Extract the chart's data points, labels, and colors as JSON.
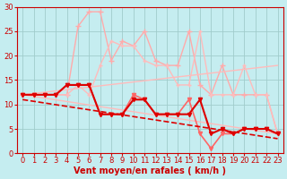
{
  "xlabel": "Vent moyen/en rafales ( km/h )",
  "xlim": [
    -0.5,
    23.5
  ],
  "ylim": [
    0,
    30
  ],
  "yticks": [
    0,
    5,
    10,
    15,
    20,
    25,
    30
  ],
  "xticks": [
    0,
    1,
    2,
    3,
    4,
    5,
    6,
    7,
    8,
    9,
    10,
    11,
    12,
    13,
    14,
    15,
    16,
    17,
    18,
    19,
    20,
    21,
    22,
    23
  ],
  "bg_color": "#c5edf0",
  "grid_color": "#a0cccc",
  "series": [
    {
      "x": [
        0,
        1,
        2,
        3,
        4,
        5,
        6,
        7,
        8,
        9,
        10,
        11,
        12,
        13,
        14,
        15,
        16,
        17,
        18,
        19,
        20,
        21,
        22,
        23
      ],
      "y": [
        12,
        12,
        12,
        12,
        12,
        26,
        29,
        29,
        19,
        23,
        22,
        25,
        19,
        18,
        18,
        25,
        14,
        12,
        18,
        12,
        12,
        12,
        12,
        4
      ],
      "color": "#ffaaaa",
      "lw": 1.0,
      "marker": "+",
      "ms": 4,
      "alpha": 1.0,
      "linestyle": "-",
      "zorder": 2
    },
    {
      "x": [
        0,
        23
      ],
      "y": [
        12,
        18
      ],
      "color": "#ffbbbb",
      "lw": 1.0,
      "marker": null,
      "ms": 0,
      "alpha": 1.0,
      "linestyle": "-",
      "zorder": 2
    },
    {
      "x": [
        0,
        23
      ],
      "y": [
        12,
        4
      ],
      "color": "#ffbbbb",
      "lw": 1.0,
      "marker": null,
      "ms": 0,
      "alpha": 1.0,
      "linestyle": "-",
      "zorder": 2
    },
    {
      "x": [
        0,
        1,
        2,
        3,
        4,
        5,
        6,
        7,
        8,
        9,
        10,
        11,
        12,
        13,
        14,
        15,
        16,
        17,
        18,
        19,
        20,
        21,
        22,
        23
      ],
      "y": [
        12,
        12,
        12,
        12,
        12,
        14,
        12,
        18,
        23,
        22,
        22,
        19,
        18,
        18,
        14,
        14,
        25,
        12,
        12,
        12,
        18,
        12,
        12,
        4
      ],
      "color": "#ffbbbb",
      "lw": 1.0,
      "marker": "+",
      "ms": 3,
      "alpha": 1.0,
      "linestyle": "-",
      "zorder": 2
    },
    {
      "x": [
        0,
        1,
        2,
        3,
        4,
        5,
        6,
        7,
        8,
        9,
        10,
        11,
        12,
        13,
        14,
        15,
        16,
        17,
        18,
        19,
        20,
        21,
        22,
        23
      ],
      "y": [
        12,
        12,
        12,
        12,
        14,
        14,
        14,
        8,
        8,
        8,
        11,
        11,
        8,
        8,
        8,
        8,
        11,
        4,
        5,
        4,
        5,
        5,
        5,
        4
      ],
      "color": "#dd0000",
      "lw": 1.5,
      "marker": "v",
      "ms": 3,
      "alpha": 1.0,
      "linestyle": "-",
      "zorder": 5
    },
    {
      "x": [
        0,
        23
      ],
      "y": [
        11,
        3
      ],
      "color": "#dd0000",
      "lw": 1.2,
      "marker": null,
      "ms": 0,
      "alpha": 1.0,
      "linestyle": "--",
      "zorder": 4
    },
    {
      "x": [
        0,
        1,
        2,
        3,
        4,
        5,
        6,
        7,
        8,
        9,
        10,
        11,
        12,
        13,
        14,
        15,
        16,
        17,
        18,
        19,
        20,
        21,
        22,
        23
      ],
      "y": [
        12,
        12,
        12,
        12,
        14,
        14,
        14,
        8,
        8,
        8,
        12,
        11,
        8,
        8,
        8,
        11,
        4,
        1,
        4,
        4,
        5,
        5,
        5,
        4
      ],
      "color": "#ff6666",
      "lw": 1.2,
      "marker": "v",
      "ms": 3,
      "alpha": 1.0,
      "linestyle": "-",
      "zorder": 3
    }
  ],
  "xlabel_color": "#cc0000",
  "xlabel_fontsize": 7,
  "tick_color": "#cc0000",
  "tick_fontsize": 6,
  "ylabel_fontsize": 6,
  "ylabel_color": "#cc0000"
}
